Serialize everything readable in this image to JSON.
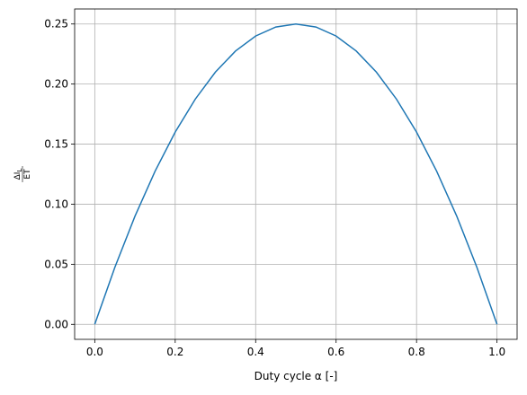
{
  "chart_data": {
    "type": "line",
    "xlabel": "Duty cycle α [-]",
    "ylabel_numerator": "ΔI",
    "ylabel_numerator_sub": "L",
    "ylabel_denominator": "ET",
    "x": [
      0,
      0.05,
      0.1,
      0.15,
      0.2,
      0.25,
      0.3,
      0.35,
      0.4,
      0.45,
      0.5,
      0.55,
      0.6,
      0.65,
      0.7,
      0.75,
      0.8,
      0.85,
      0.9,
      0.95,
      1
    ],
    "series": [
      {
        "color": "#1f77b4",
        "values": [
          0,
          0.0475,
          0.09,
          0.1275,
          0.16,
          0.1875,
          0.21,
          0.2275,
          0.24,
          0.2475,
          0.25,
          0.2475,
          0.24,
          0.2275,
          0.21,
          0.1875,
          0.16,
          0.1275,
          0.09,
          0.0475,
          0
        ]
      }
    ],
    "xlim": [
      -0.05,
      1.05
    ],
    "ylim": [
      -0.0125,
      0.2625
    ],
    "xticks": [
      {
        "value": 0,
        "label": "0.0"
      },
      0.2,
      0.4,
      0.6,
      0.8,
      {
        "value": 1,
        "label": "1.0"
      }
    ],
    "yticks": [
      {
        "value": 0,
        "label": "0.00"
      },
      0.05,
      {
        "value": 0.1,
        "label": "0.10"
      },
      0.15,
      {
        "value": 0.2,
        "label": "0.20"
      },
      0.25
    ],
    "grid": true
  }
}
